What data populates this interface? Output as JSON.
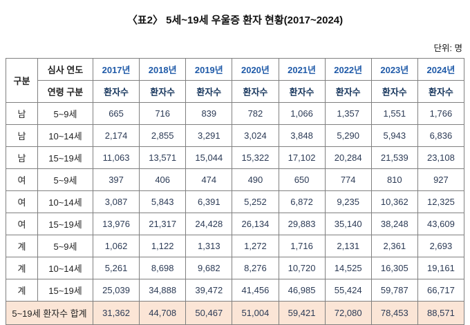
{
  "page": {
    "title": "〈표2〉 5세~19세 우울증 환자 현황(2017~2024)",
    "unit_label": "단위: 명"
  },
  "chart_data": {
    "type": "table",
    "title": "〈표2〉 5세~19세 우울증 환자 현황(2017~2024)",
    "unit": "명",
    "corner_header": "구분",
    "header_top": "심사 연도",
    "header_bottom": "연령 구분",
    "measure_label": "환자수",
    "years": [
      "2017년",
      "2018년",
      "2019년",
      "2020년",
      "2021년",
      "2022년",
      "2023년",
      "2024년"
    ],
    "rows": [
      {
        "group": "남",
        "age": "5~9세",
        "values": [
          665,
          716,
          839,
          782,
          1066,
          1357,
          1551,
          1766
        ]
      },
      {
        "group": "남",
        "age": "10~14세",
        "values": [
          2174,
          2855,
          3291,
          3024,
          3848,
          5290,
          5943,
          6836
        ]
      },
      {
        "group": "남",
        "age": "15~19세",
        "values": [
          11063,
          13571,
          15044,
          15322,
          17102,
          20284,
          21539,
          23108
        ]
      },
      {
        "group": "여",
        "age": "5~9세",
        "values": [
          397,
          406,
          474,
          490,
          650,
          774,
          810,
          927
        ]
      },
      {
        "group": "여",
        "age": "10~14세",
        "values": [
          3087,
          5843,
          6391,
          5252,
          6872,
          9235,
          10362,
          12325
        ]
      },
      {
        "group": "여",
        "age": "15~19세",
        "values": [
          13976,
          21317,
          24428,
          26134,
          29883,
          35140,
          38248,
          43609
        ]
      },
      {
        "group": "계",
        "age": "5~9세",
        "values": [
          1062,
          1122,
          1313,
          1272,
          1716,
          2131,
          2361,
          2693
        ]
      },
      {
        "group": "계",
        "age": "10~14세",
        "values": [
          5261,
          8698,
          9682,
          8276,
          10720,
          14525,
          16305,
          19161
        ]
      },
      {
        "group": "계",
        "age": "15~19세",
        "values": [
          25039,
          34888,
          39472,
          41456,
          46985,
          55424,
          59787,
          66717
        ]
      }
    ],
    "footer": {
      "label": "5~19세 환자수 합계",
      "values": [
        31362,
        44708,
        50467,
        51004,
        59421,
        72080,
        78453,
        88571
      ]
    }
  },
  "colors": {
    "year_header_text": "#1f5aa8",
    "measure_header_text": "#17365d",
    "number_text": "#2b3a55",
    "footer_background": "#fbe5d6",
    "grid_line": "#7f7f7f"
  }
}
